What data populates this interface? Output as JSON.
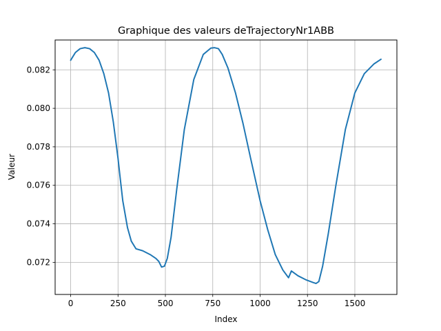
{
  "chart_data": {
    "type": "line",
    "title": "Graphique des valeurs deTrajectoryNr1ABB",
    "xlabel": "Index",
    "ylabel": "Valeur",
    "xlim": [
      -82,
      1722
    ],
    "ylim": [
      0.07033,
      0.08355
    ],
    "xticks": [
      0,
      250,
      500,
      750,
      1000,
      1250,
      1500
    ],
    "xtick_labels": [
      "0",
      "250",
      "500",
      "750",
      "1000",
      "1250",
      "1500"
    ],
    "yticks": [
      0.072,
      0.074,
      0.076,
      0.078,
      0.08,
      0.082
    ],
    "ytick_labels": [
      "0.072",
      "0.074",
      "0.076",
      "0.078",
      "0.080",
      "0.082"
    ],
    "grid": true,
    "series": [
      {
        "color": "#1f77b4",
        "x": [
          0,
          25,
          50,
          75,
          100,
          125,
          150,
          175,
          200,
          225,
          250,
          260,
          275,
          300,
          320,
          345,
          380,
          420,
          450,
          465,
          480,
          495,
          510,
          530,
          560,
          600,
          650,
          700,
          740,
          760,
          780,
          800,
          830,
          870,
          910,
          950,
          1000,
          1040,
          1080,
          1120,
          1150,
          1165,
          1200,
          1240,
          1280,
          1295,
          1310,
          1330,
          1360,
          1400,
          1450,
          1500,
          1550,
          1600,
          1638
        ],
        "y": [
          0.0825,
          0.0829,
          0.0831,
          0.08315,
          0.0831,
          0.0829,
          0.0825,
          0.0818,
          0.0808,
          0.0793,
          0.0774,
          0.0765,
          0.0752,
          0.0738,
          0.0731,
          0.0727,
          0.0726,
          0.0724,
          0.0722,
          0.07205,
          0.07175,
          0.0718,
          0.0722,
          0.0733,
          0.0758,
          0.0789,
          0.0815,
          0.0828,
          0.08313,
          0.08315,
          0.0831,
          0.0828,
          0.0821,
          0.0808,
          0.0792,
          0.0774,
          0.0752,
          0.0737,
          0.0724,
          0.0716,
          0.0712,
          0.07155,
          0.0713,
          0.0711,
          0.07095,
          0.0709,
          0.071,
          0.0718,
          0.0735,
          0.076,
          0.0789,
          0.0808,
          0.0818,
          0.0823,
          0.08255
        ]
      }
    ]
  }
}
